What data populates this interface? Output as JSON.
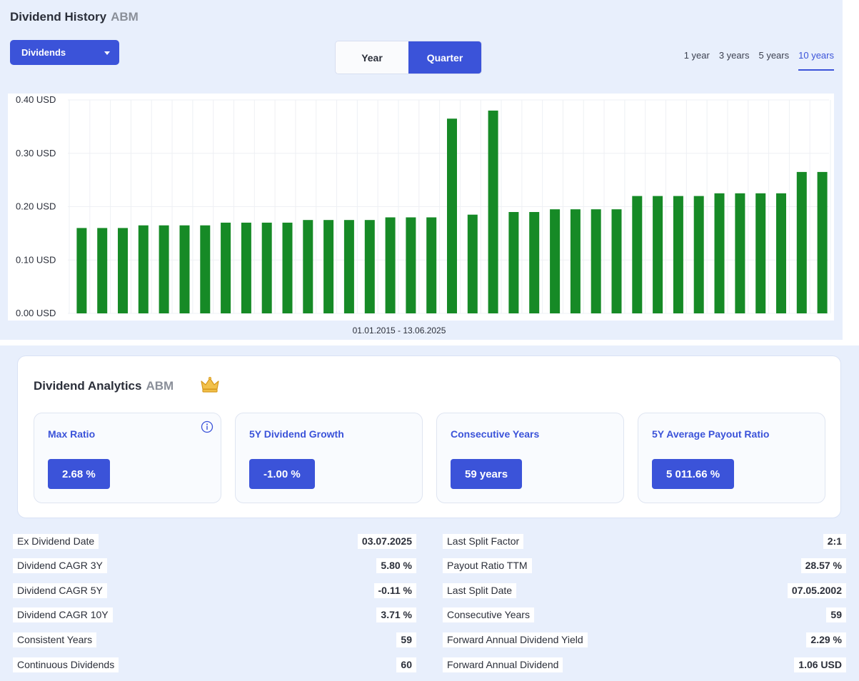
{
  "history": {
    "title": "Dividend History",
    "ticker": "ABM",
    "dropdown_label": "Dividends",
    "toggle": {
      "year": "Year",
      "quarter": "Quarter",
      "selected": "Quarter"
    },
    "ranges": [
      "1 year",
      "3 years",
      "5 years",
      "10 years"
    ],
    "active_range": "10 years",
    "date_range": "01.01.2015 - 13.06.2025"
  },
  "chart_data": {
    "type": "bar",
    "title": "",
    "xlabel": "01.01.2015 - 13.06.2025",
    "ylabel": "",
    "ylim": [
      0,
      0.4
    ],
    "yticks": [
      "0.00 USD",
      "0.10 USD",
      "0.20 USD",
      "0.30 USD",
      "0.40 USD"
    ],
    "ytick_values": [
      0,
      0.1,
      0.2,
      0.3,
      0.4
    ],
    "grid": true,
    "bar_color": "#168a26",
    "values": [
      0.16,
      0.16,
      0.16,
      0.165,
      0.165,
      0.165,
      0.165,
      0.17,
      0.17,
      0.17,
      0.17,
      0.175,
      0.175,
      0.175,
      0.175,
      0.18,
      0.18,
      0.18,
      0.365,
      0.185,
      0.38,
      0.19,
      0.19,
      0.195,
      0.195,
      0.195,
      0.195,
      0.22,
      0.22,
      0.22,
      0.22,
      0.225,
      0.225,
      0.225,
      0.225,
      0.265,
      0.265
    ]
  },
  "analytics": {
    "title": "Dividend Analytics",
    "ticker": "ABM",
    "metrics": [
      {
        "label": "Max Ratio",
        "value": "2.68 %"
      },
      {
        "label": "5Y Dividend Growth",
        "value": "-1.00 %"
      },
      {
        "label": "Consecutive Years",
        "value": "59 years"
      },
      {
        "label": "5Y Average Payout Ratio",
        "value": "5 011.66 %"
      }
    ]
  },
  "details_left": [
    {
      "label": "Ex Dividend Date",
      "value": "03.07.2025"
    },
    {
      "label": "Dividend CAGR 3Y",
      "value": "5.80 %"
    },
    {
      "label": "Dividend CAGR 5Y",
      "value": "-0.11 %"
    },
    {
      "label": "Dividend CAGR 10Y",
      "value": "3.71 %"
    },
    {
      "label": "Consistent Years",
      "value": "59"
    },
    {
      "label": "Continuous Dividends",
      "value": "60"
    }
  ],
  "details_right": [
    {
      "label": "Last Split Factor",
      "value": "2:1"
    },
    {
      "label": "Payout Ratio TTM",
      "value": "28.57 %"
    },
    {
      "label": "Last Split Date",
      "value": "07.05.2002"
    },
    {
      "label": "Consecutive Years",
      "value": "59"
    },
    {
      "label": "Forward Annual Dividend Yield",
      "value": "2.29 %"
    },
    {
      "label": "Forward Annual Dividend",
      "value": "1.06 USD"
    }
  ],
  "colors": {
    "accent": "#3b53d9",
    "panel_bg": "#e8effc",
    "bar": "#168a26"
  }
}
